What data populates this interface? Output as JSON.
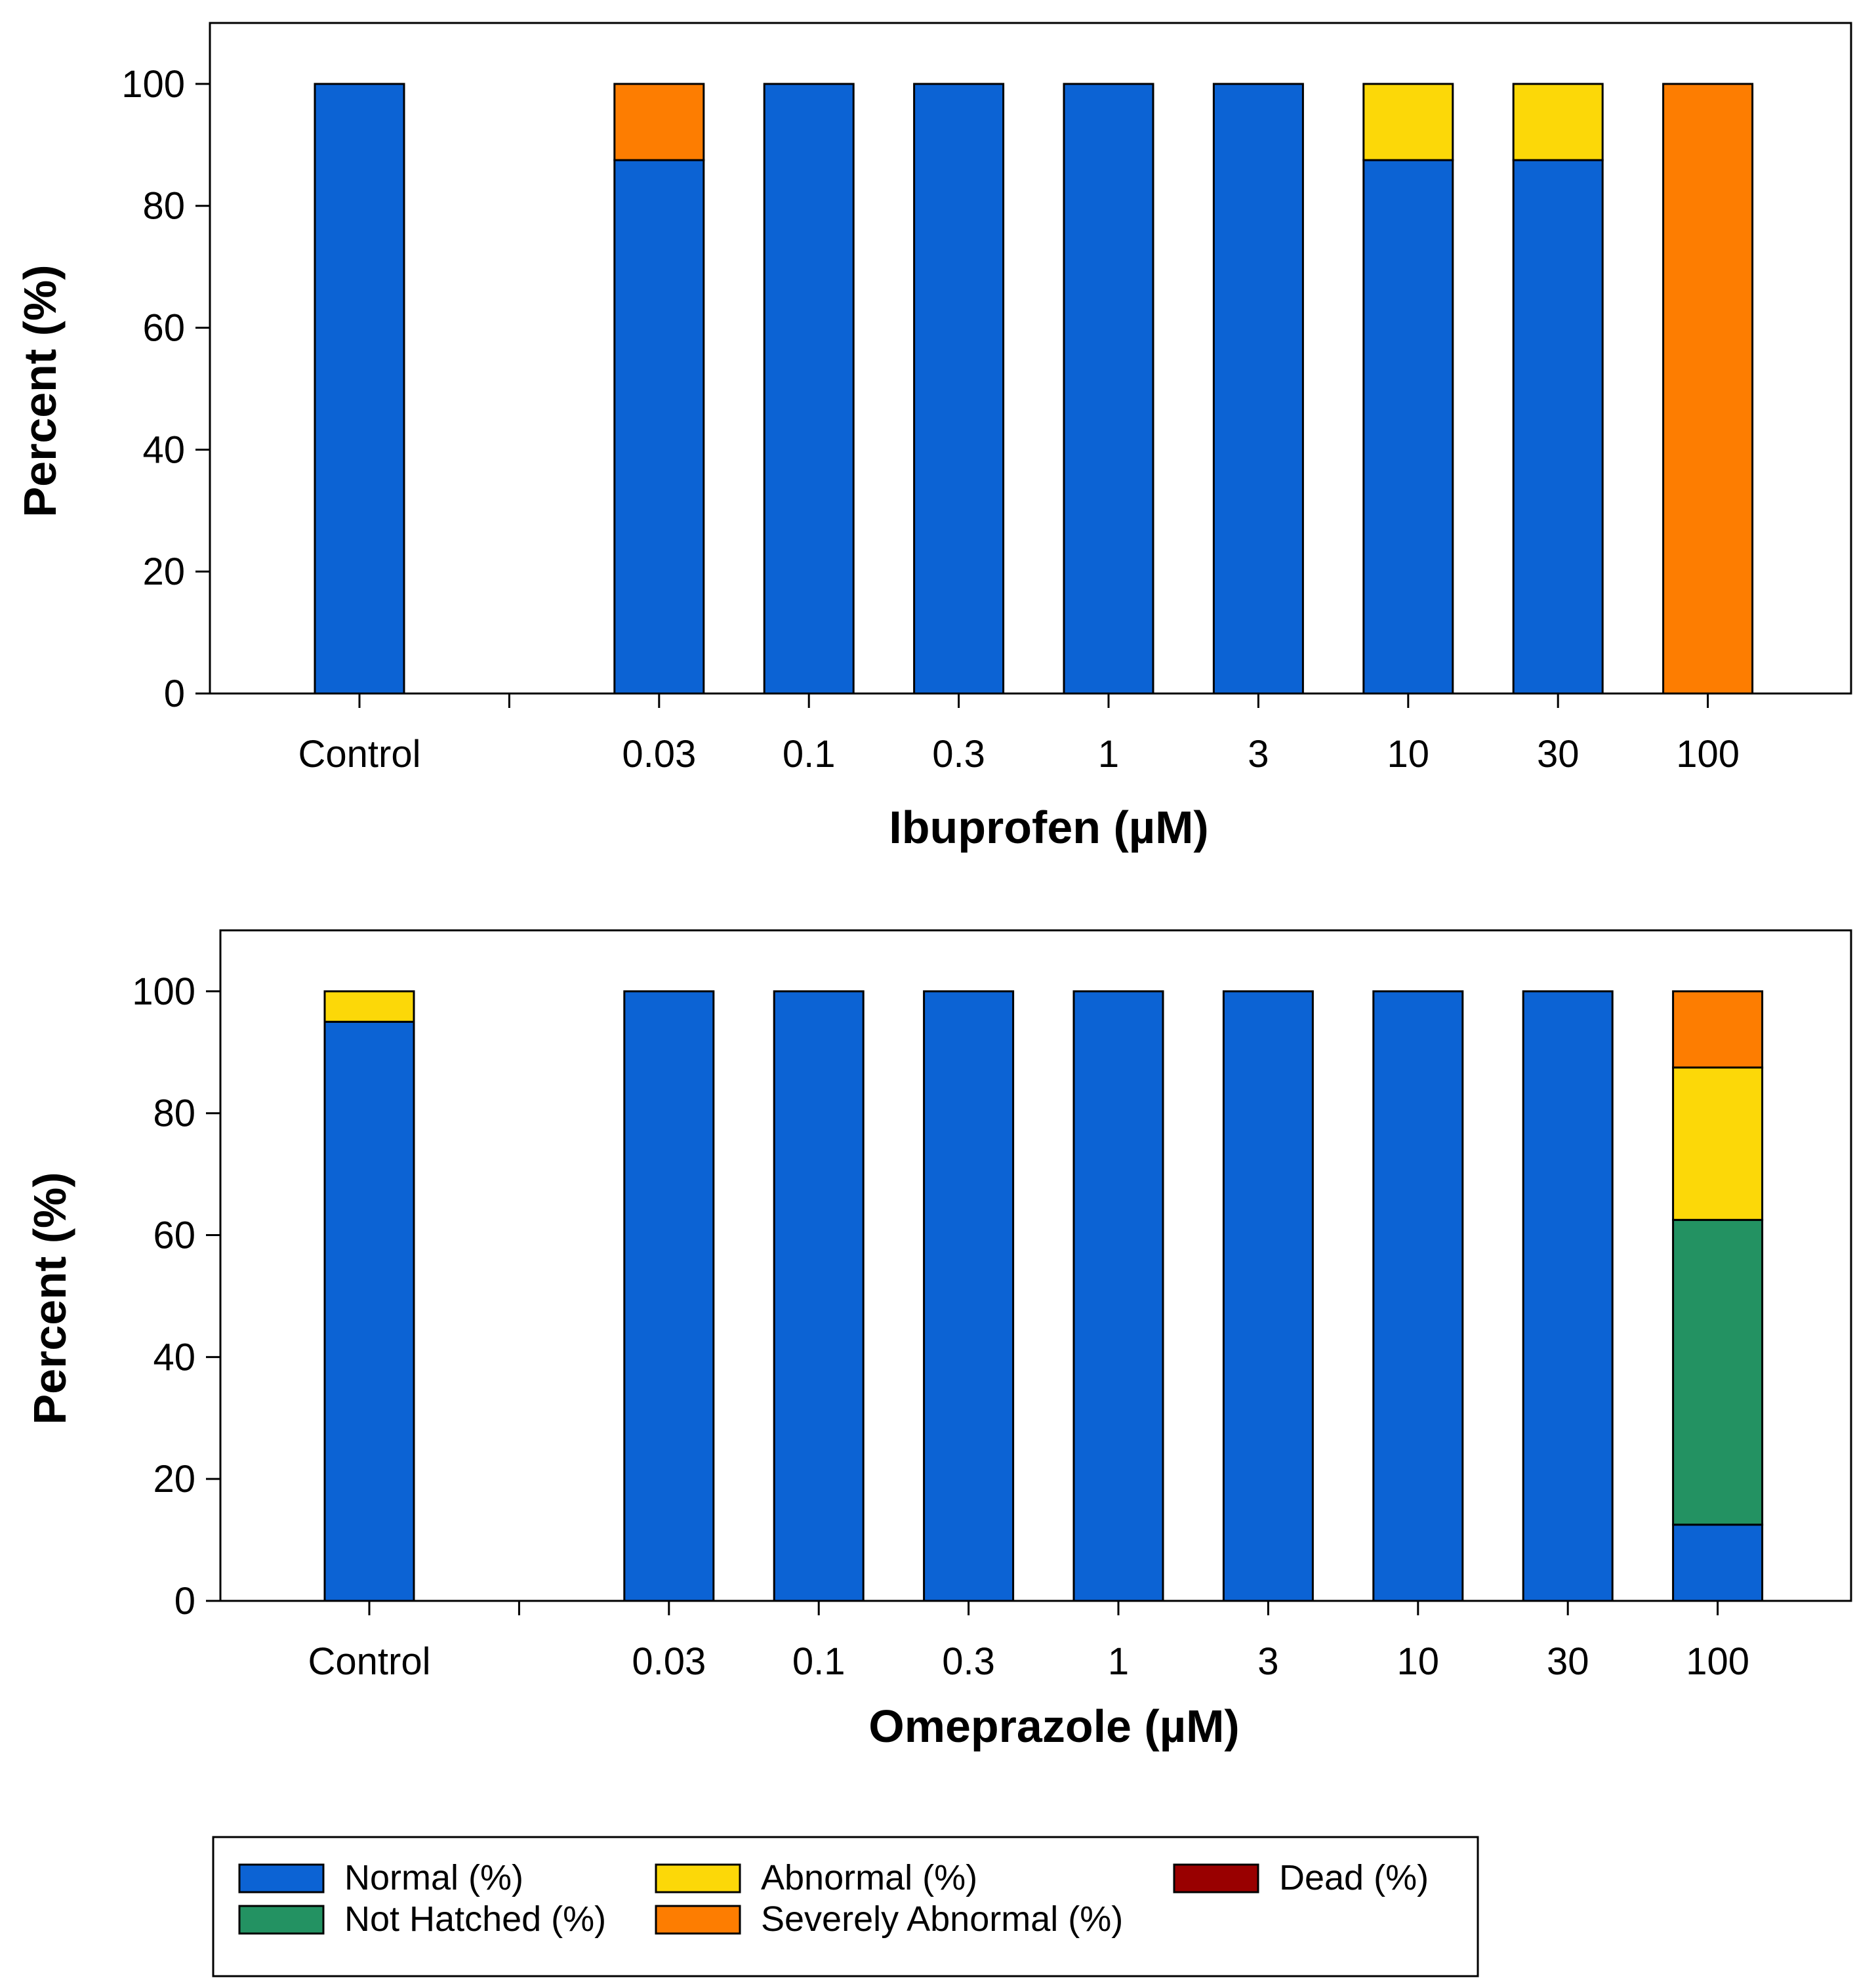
{
  "chart_data": [
    {
      "type": "bar",
      "stacked": true,
      "xlabel": "Ibuprofen (µM)",
      "ylabel": "Percent (%)",
      "ylim": [
        0,
        110
      ],
      "yticks": [
        0,
        20,
        40,
        60,
        80,
        100
      ],
      "categories": [
        "Control",
        "",
        "0.03",
        "0.1",
        "0.3",
        "1",
        "3",
        "10",
        "30",
        "100"
      ],
      "series": [
        {
          "name": "Normal (%)",
          "color": "#0c63d4",
          "values": [
            100,
            null,
            87.5,
            100,
            100,
            100,
            100,
            87.5,
            87.5,
            0
          ]
        },
        {
          "name": "Not Hatched (%)",
          "color": "#239262",
          "values": [
            0,
            null,
            0,
            0,
            0,
            0,
            0,
            0,
            0,
            0
          ]
        },
        {
          "name": "Abnormal (%)",
          "color": "#fcd808",
          "values": [
            0,
            null,
            0,
            0,
            0,
            0,
            0,
            12.5,
            12.5,
            0
          ]
        },
        {
          "name": "Severely Abnormal (%)",
          "color": "#fd7d01",
          "values": [
            0,
            null,
            12.5,
            0,
            0,
            0,
            0,
            0,
            0,
            100
          ]
        },
        {
          "name": "Dead (%)",
          "color": "#990000",
          "values": [
            0,
            null,
            0,
            0,
            0,
            0,
            0,
            0,
            0,
            0
          ]
        }
      ]
    },
    {
      "type": "bar",
      "stacked": true,
      "xlabel": "Omeprazole (µM)",
      "ylabel": "Percent (%)",
      "ylim": [
        0,
        110
      ],
      "yticks": [
        0,
        20,
        40,
        60,
        80,
        100
      ],
      "categories": [
        "Control",
        "",
        "0.03",
        "0.1",
        "0.3",
        "1",
        "3",
        "10",
        "30",
        "100"
      ],
      "series": [
        {
          "name": "Normal (%)",
          "color": "#0c63d4",
          "values": [
            95,
            null,
            100,
            100,
            100,
            100,
            100,
            100,
            100,
            12.5
          ]
        },
        {
          "name": "Not Hatched (%)",
          "color": "#239262",
          "values": [
            0,
            null,
            0,
            0,
            0,
            0,
            0,
            0,
            0,
            50
          ]
        },
        {
          "name": "Abnormal (%)",
          "color": "#fcd808",
          "values": [
            5,
            null,
            0,
            0,
            0,
            0,
            0,
            0,
            0,
            25
          ]
        },
        {
          "name": "Severely Abnormal (%)",
          "color": "#fd7d01",
          "values": [
            0,
            null,
            0,
            0,
            0,
            0,
            0,
            0,
            0,
            12.5
          ]
        },
        {
          "name": "Dead (%)",
          "color": "#990000",
          "values": [
            0,
            null,
            0,
            0,
            0,
            0,
            0,
            0,
            0,
            0
          ]
        }
      ]
    }
  ],
  "legend": {
    "placement": "bottom",
    "items": [
      {
        "label": "Normal (%)",
        "color": "#0c63d4"
      },
      {
        "label": "Abnormal (%)",
        "color": "#fcd808"
      },
      {
        "label": "Dead (%)",
        "color": "#990000"
      },
      {
        "label": "Not Hatched (%)",
        "color": "#239262"
      },
      {
        "label": "Severely Abnormal (%)",
        "color": "#fd7d01"
      }
    ]
  }
}
